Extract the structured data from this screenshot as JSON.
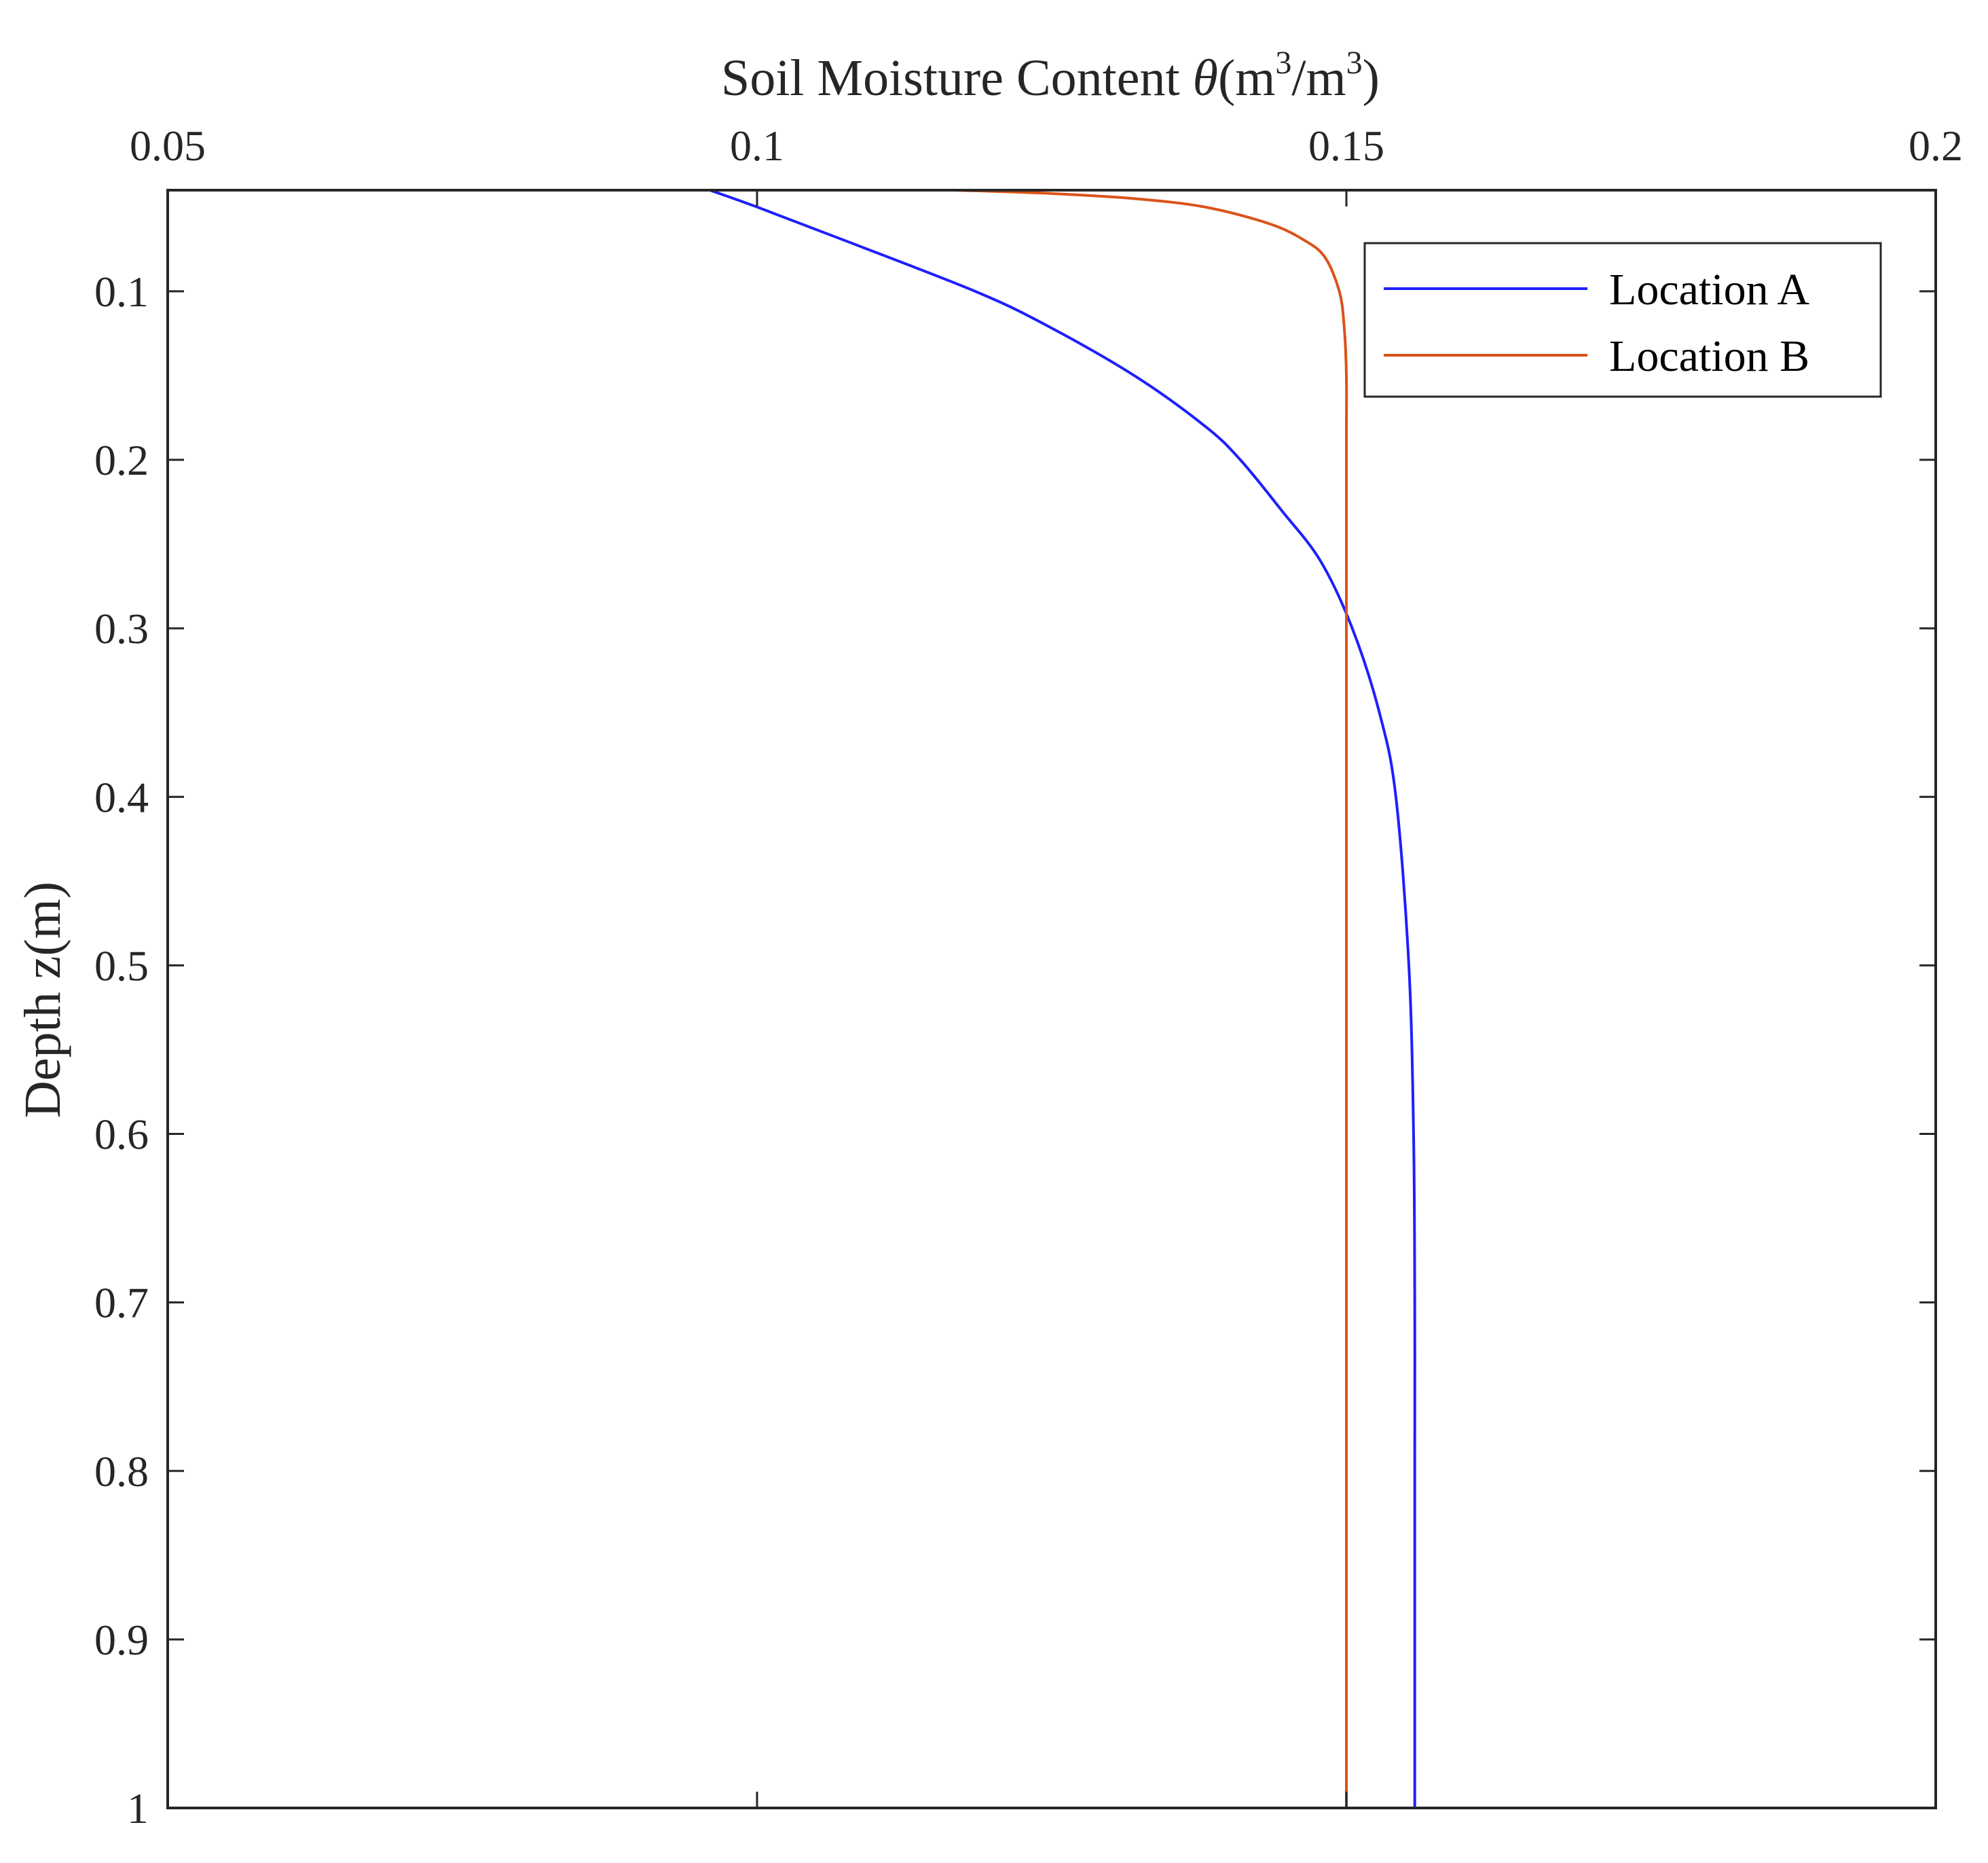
{
  "chart_data": {
    "type": "line",
    "title": "",
    "xlabel": {
      "prefix": "Soil Moisture Content ",
      "symbol": "θ",
      "unit_open": "(m",
      "exp1": "3",
      "unit_mid": "/m",
      "exp2": "3",
      "unit_close": ")"
    },
    "ylabel": "Depth z(m)",
    "xlim": [
      0.05,
      0.2
    ],
    "ylim": [
      0.04,
      1.0
    ],
    "x_axis_position": "top",
    "y_axis_reversed": true,
    "grid": false,
    "legend_position": "top-right",
    "x_ticks": [
      {
        "value": 0.05,
        "label": "0.05"
      },
      {
        "value": 0.1,
        "label": "0.1"
      },
      {
        "value": 0.15,
        "label": "0.15"
      },
      {
        "value": 0.2,
        "label": "0.2"
      }
    ],
    "y_ticks": [
      {
        "value": 0.1,
        "label": "0.1"
      },
      {
        "value": 0.2,
        "label": "0.2"
      },
      {
        "value": 0.3,
        "label": "0.3"
      },
      {
        "value": 0.4,
        "label": "0.4"
      },
      {
        "value": 0.5,
        "label": "0.5"
      },
      {
        "value": 0.6,
        "label": "0.6"
      },
      {
        "value": 0.7,
        "label": "0.7"
      },
      {
        "value": 0.8,
        "label": "0.8"
      },
      {
        "value": 0.9,
        "label": "0.9"
      },
      {
        "value": 1.0,
        "label": "1"
      }
    ],
    "series": [
      {
        "name": "Location A",
        "color": "#1f1fff",
        "points": [
          {
            "depth": 0.04,
            "theta": 0.096
          },
          {
            "depth": 0.05,
            "theta": 0.1
          },
          {
            "depth": 0.07,
            "theta": 0.1075
          },
          {
            "depth": 0.1,
            "theta": 0.1185
          },
          {
            "depth": 0.12,
            "theta": 0.1245
          },
          {
            "depth": 0.15,
            "theta": 0.132
          },
          {
            "depth": 0.18,
            "theta": 0.138
          },
          {
            "depth": 0.2,
            "theta": 0.141
          },
          {
            "depth": 0.23,
            "theta": 0.1445
          },
          {
            "depth": 0.26,
            "theta": 0.1478
          },
          {
            "depth": 0.3,
            "theta": 0.1505
          },
          {
            "depth": 0.35,
            "theta": 0.1528
          },
          {
            "depth": 0.4,
            "theta": 0.1542
          },
          {
            "depth": 0.5,
            "theta": 0.1553
          },
          {
            "depth": 0.6,
            "theta": 0.1557
          },
          {
            "depth": 0.7,
            "theta": 0.1558
          },
          {
            "depth": 0.8,
            "theta": 0.1558
          },
          {
            "depth": 0.9,
            "theta": 0.1558
          },
          {
            "depth": 1.0,
            "theta": 0.1558
          }
        ]
      },
      {
        "name": "Location B",
        "color": "#d95319",
        "points": [
          {
            "depth": 0.04,
            "theta": 0.1168
          },
          {
            "depth": 0.042,
            "theta": 0.125
          },
          {
            "depth": 0.045,
            "theta": 0.132
          },
          {
            "depth": 0.05,
            "theta": 0.138
          },
          {
            "depth": 0.06,
            "theta": 0.1435
          },
          {
            "depth": 0.07,
            "theta": 0.1465
          },
          {
            "depth": 0.08,
            "theta": 0.1482
          },
          {
            "depth": 0.1,
            "theta": 0.1494
          },
          {
            "depth": 0.12,
            "theta": 0.1498
          },
          {
            "depth": 0.15,
            "theta": 0.15
          },
          {
            "depth": 0.2,
            "theta": 0.15
          },
          {
            "depth": 0.4,
            "theta": 0.15
          },
          {
            "depth": 0.6,
            "theta": 0.15
          },
          {
            "depth": 0.8,
            "theta": 0.15
          },
          {
            "depth": 1.0,
            "theta": 0.15
          }
        ]
      }
    ]
  }
}
